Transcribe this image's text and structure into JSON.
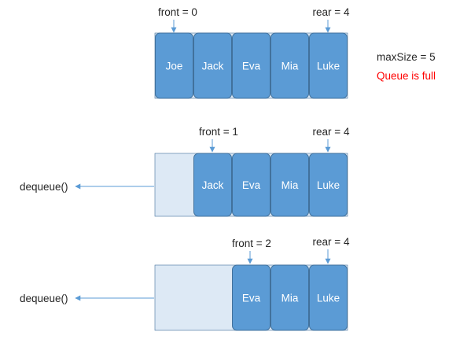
{
  "colors": {
    "cell_fill": "#5b9bd5",
    "cell_stroke": "#41719c",
    "empty_fill": "#dde9f5",
    "arrow": "#5b9bd5",
    "text_dark": "#262626",
    "cell_text": "#ffffff",
    "alert": "#ff0000"
  },
  "queue_states": [
    {
      "filled": [
        "Joe",
        "Jack",
        "Eva",
        "Mia",
        "Luke"
      ],
      "front_label": "front = 0",
      "rear_label": "rear = 4",
      "operation": ""
    },
    {
      "filled": [
        "",
        "Jack",
        "Eva",
        "Mia",
        "Luke"
      ],
      "front_label": "front = 1",
      "rear_label": "rear = 4",
      "operation": "dequeue()"
    },
    {
      "filled": [
        "",
        "",
        "Eva",
        "Mia",
        "Luke"
      ],
      "front_label": "front = 2",
      "rear_label": "rear = 4",
      "operation": "dequeue()"
    }
  ],
  "notes": {
    "max_size": "maxSize = 5",
    "full_status": "Queue is full"
  }
}
